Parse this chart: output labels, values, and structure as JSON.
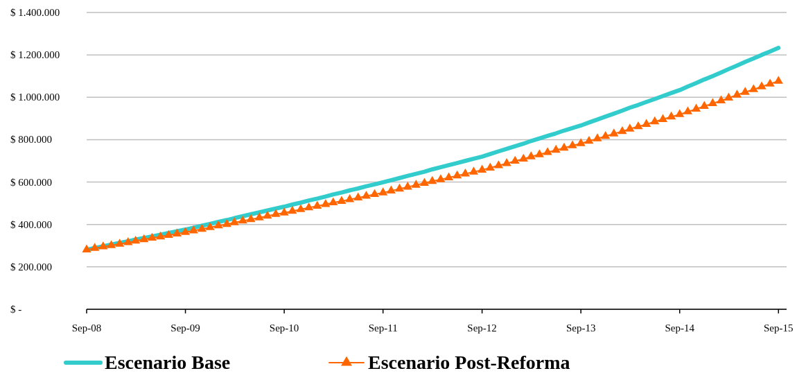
{
  "chart_data": {
    "type": "line",
    "x": [
      "2008-09",
      "2008-10",
      "2008-11",
      "2008-12",
      "2009-01",
      "2009-02",
      "2009-03",
      "2009-04",
      "2009-05",
      "2009-06",
      "2009-07",
      "2009-08",
      "2009-09",
      "2009-10",
      "2009-11",
      "2009-12",
      "2010-01",
      "2010-02",
      "2010-03",
      "2010-04",
      "2010-05",
      "2010-06",
      "2010-07",
      "2010-08",
      "2010-09",
      "2010-10",
      "2010-11",
      "2010-12",
      "2011-01",
      "2011-02",
      "2011-03",
      "2011-04",
      "2011-05",
      "2011-06",
      "2011-07",
      "2011-08",
      "2011-09",
      "2011-10",
      "2011-11",
      "2011-12",
      "2012-01",
      "2012-02",
      "2012-03",
      "2012-04",
      "2012-05",
      "2012-06",
      "2012-07",
      "2012-08",
      "2012-09",
      "2012-10",
      "2012-11",
      "2012-12",
      "2013-01",
      "2013-02",
      "2013-03",
      "2013-04",
      "2013-05",
      "2013-06",
      "2013-07",
      "2013-08",
      "2013-09",
      "2013-10",
      "2013-11",
      "2013-12",
      "2014-01",
      "2014-02",
      "2014-03",
      "2014-04",
      "2014-05",
      "2014-06",
      "2014-07",
      "2014-08",
      "2014-09",
      "2014-10",
      "2014-11",
      "2014-12",
      "2015-01",
      "2015-02",
      "2015-03",
      "2015-04",
      "2015-05",
      "2015-06",
      "2015-07",
      "2015-08",
      "2015-09"
    ],
    "series": [
      {
        "name": "Escenario Base",
        "color": "#33cccc",
        "marker": "none",
        "values": [
          281000,
          289000,
          297000,
          305000,
          313000,
          321000,
          329000,
          336000,
          344000,
          352000,
          360000,
          368000,
          376000,
          385000,
          394000,
          403000,
          412000,
          421000,
          430000,
          439000,
          448000,
          457000,
          466000,
          475000,
          484000,
          494000,
          503000,
          513000,
          522000,
          532000,
          542000,
          551000,
          561000,
          570000,
          580000,
          589000,
          599000,
          609000,
          619000,
          629000,
          639000,
          649000,
          660000,
          670000,
          680000,
          690000,
          700000,
          710000,
          720000,
          732000,
          745000,
          757000,
          769000,
          781000,
          794000,
          806000,
          818000,
          830000,
          843000,
          855000,
          867000,
          881000,
          895000,
          909000,
          923000,
          937000,
          951000,
          964000,
          978000,
          992000,
          1006000,
          1020000,
          1034000,
          1051000,
          1067000,
          1084000,
          1100000,
          1117000,
          1133000,
          1150000,
          1167000,
          1183000,
          1200000,
          1216000,
          1233000
        ]
      },
      {
        "name": "Escenario Post-Reforma",
        "color": "#ff6600",
        "marker": "triangle",
        "values": [
          281000,
          288000,
          295000,
          301000,
          308000,
          315000,
          322000,
          329000,
          336000,
          342000,
          349000,
          356000,
          363000,
          371000,
          378000,
          386000,
          394000,
          401000,
          409000,
          417000,
          424000,
          432000,
          440000,
          448000,
          455000,
          463000,
          471000,
          479000,
          487000,
          495000,
          503000,
          510000,
          518000,
          526000,
          534000,
          542000,
          550000,
          559000,
          568000,
          577000,
          586000,
          595000,
          604000,
          612000,
          621000,
          630000,
          639000,
          648000,
          657000,
          667000,
          678000,
          688000,
          699000,
          709000,
          720000,
          730000,
          740000,
          751000,
          761000,
          772000,
          782000,
          793000,
          805000,
          816000,
          828000,
          839000,
          851000,
          862000,
          873000,
          885000,
          896000,
          908000,
          919000,
          932000,
          945000,
          958000,
          971000,
          984000,
          997000,
          1011000,
          1024000,
          1037000,
          1050000,
          1063000,
          1076000
        ]
      }
    ],
    "xlim": [
      "2008-09",
      "2015-10"
    ],
    "xticks": [
      {
        "value": "2008-09",
        "label": "Sep-08"
      },
      {
        "value": "2009-09",
        "label": "Sep-09"
      },
      {
        "value": "2010-09",
        "label": "Sep-10"
      },
      {
        "value": "2011-09",
        "label": "Sep-11"
      },
      {
        "value": "2012-09",
        "label": "Sep-12"
      },
      {
        "value": "2013-09",
        "label": "Sep-13"
      },
      {
        "value": "2014-09",
        "label": "Sep-14"
      },
      {
        "value": "2015-09",
        "label": "Sep-15"
      }
    ],
    "ylim": [
      0,
      1400000
    ],
    "yticks": [
      {
        "value": 0,
        "label": "$ -"
      },
      {
        "value": 200000,
        "label": "$ 200.000"
      },
      {
        "value": 400000,
        "label": "$ 400.000"
      },
      {
        "value": 600000,
        "label": "$ 600.000"
      },
      {
        "value": 800000,
        "label": "$ 800.000"
      },
      {
        "value": 1000000,
        "label": "$ 1.000.000"
      },
      {
        "value": 1200000,
        "label": "$ 1.200.000"
      },
      {
        "value": 1400000,
        "label": "$ 1.400.000"
      }
    ],
    "grid": "y",
    "legend": "bottom"
  }
}
